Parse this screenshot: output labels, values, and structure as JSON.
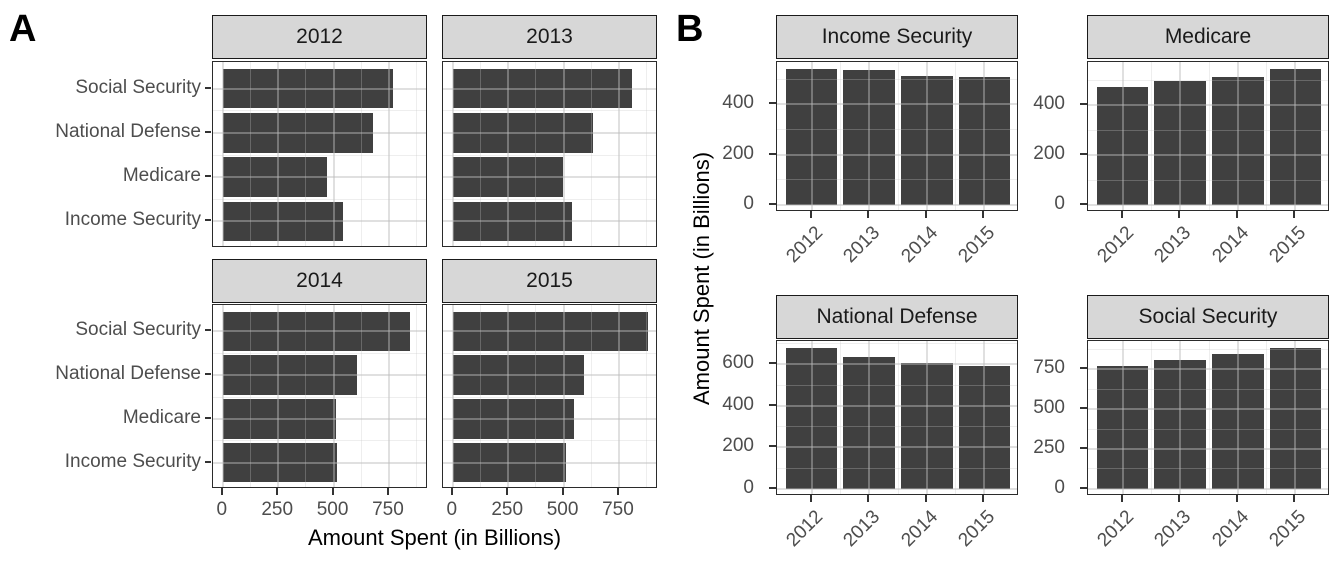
{
  "figure": {
    "description": "Two-panel faceted bar chart of US federal spending by budget function and fiscal year"
  },
  "panel_a": {
    "label": "A",
    "x_axis_title": "Amount Spent (in Billions)",
    "facet_titles": [
      "2012",
      "2013",
      "2014",
      "2015"
    ],
    "category_labels": [
      "Social Security",
      "National Defense",
      "Medicare",
      "Income Security"
    ],
    "x_ticks": [
      0,
      250,
      500,
      750
    ],
    "x_minor_ticks": [
      125,
      375,
      625,
      875
    ]
  },
  "panel_b": {
    "label": "B",
    "y_axis_title": "Amount Spent (in Billions)",
    "facet_titles": [
      "Income Security",
      "Medicare",
      "National Defense",
      "Social Security"
    ],
    "x_tick_labels": [
      "2012",
      "2013",
      "2014",
      "2015"
    ]
  },
  "style": {
    "background": "#FFFFFF",
    "bar_fill": "#404040",
    "strip_bg": "#D7D7D7",
    "strip_border": "#1A1A1A",
    "strip_text": "#1A1A1A",
    "panel_border": "#2B2B2B",
    "axis_text": "#4D4D4D",
    "tick_mark": "#333333",
    "grid_major": "rgba(187,187,187,0.45)",
    "grid_minor": "rgba(200,200,200,0.30)",
    "title_color": "#000000"
  },
  "chart_data": [
    {
      "type": "bar",
      "panel": "A",
      "orientation": "horizontal",
      "facet_by": "year",
      "facets": [
        "2012",
        "2013",
        "2014",
        "2015"
      ],
      "categories": [
        "Social Security",
        "National Defense",
        "Medicare",
        "Income Security"
      ],
      "series": [
        {
          "name": "2012",
          "values": [
            768,
            678,
            472,
            541
          ]
        },
        {
          "name": "2013",
          "values": [
            808,
            633,
            498,
            536
          ]
        },
        {
          "name": "2014",
          "values": [
            845,
            604,
            512,
            514
          ]
        },
        {
          "name": "2015",
          "values": [
            882,
            590,
            546,
            509
          ]
        }
      ],
      "xlabel": "Amount Spent (in Billions)",
      "ylabel": "",
      "xlim": [
        0,
        926
      ],
      "x_ticks": [
        0,
        250,
        500,
        750
      ],
      "grid": true,
      "legend": false
    },
    {
      "type": "bar",
      "panel": "B",
      "orientation": "vertical",
      "facet_by": "category",
      "facets": [
        "Income Security",
        "Medicare",
        "National Defense",
        "Social Security"
      ],
      "categories": [
        "2012",
        "2013",
        "2014",
        "2015"
      ],
      "series": [
        {
          "name": "Income Security",
          "values": [
            541,
            536,
            514,
            509
          ],
          "y_ticks": [
            0,
            200,
            400
          ],
          "ylim": [
            0,
            568
          ]
        },
        {
          "name": "Medicare",
          "values": [
            472,
            498,
            512,
            546
          ],
          "y_ticks": [
            0,
            200,
            400
          ],
          "ylim": [
            0,
            573
          ]
        },
        {
          "name": "National Defense",
          "values": [
            678,
            633,
            604,
            590
          ],
          "y_ticks": [
            0,
            200,
            400,
            600
          ],
          "ylim": [
            0,
            712
          ]
        },
        {
          "name": "Social Security",
          "values": [
            768,
            808,
            845,
            882
          ],
          "y_ticks": [
            0,
            250,
            500,
            750
          ],
          "ylim": [
            0,
            926
          ]
        }
      ],
      "xlabel": "",
      "ylabel": "Amount Spent (in Billions)",
      "grid": true,
      "legend": false
    }
  ]
}
